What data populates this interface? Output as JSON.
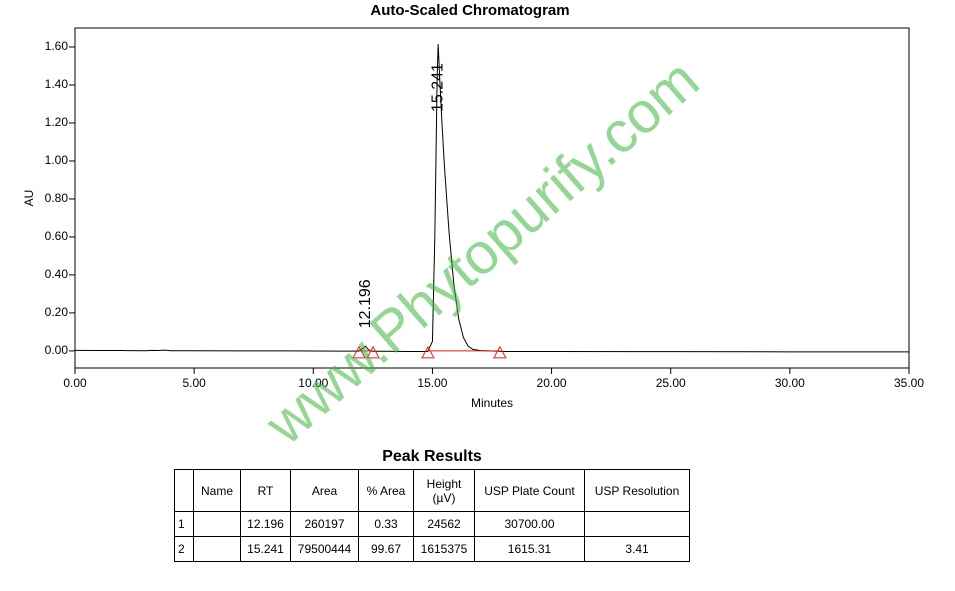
{
  "chart_data": {
    "type": "line",
    "title": "Auto-Scaled Chromatogram",
    "x_label": "Minutes",
    "y_label": "AU",
    "xlim": [
      0,
      35
    ],
    "ylim": [
      -0.09,
      1.7
    ],
    "xticks": [
      {
        "value": 0,
        "label": "0.00"
      },
      {
        "value": 5,
        "label": "5.00"
      },
      {
        "value": 10,
        "label": "10.00"
      },
      {
        "value": 15,
        "label": "15.00"
      },
      {
        "value": 20,
        "label": "20.00"
      },
      {
        "value": 25,
        "label": "25.00"
      },
      {
        "value": 30,
        "label": "30.00"
      },
      {
        "value": 35,
        "label": "35.00"
      }
    ],
    "yticks": [
      {
        "value": 0,
        "label": "0.00"
      },
      {
        "value": 0.2,
        "label": "0.20"
      },
      {
        "value": 0.4,
        "label": "0.40"
      },
      {
        "value": 0.6,
        "label": "0.60"
      },
      {
        "value": 0.8,
        "label": "0.80"
      },
      {
        "value": 1.0,
        "label": "1.00"
      },
      {
        "value": 1.2,
        "label": "1.20"
      },
      {
        "value": 1.4,
        "label": "1.40"
      },
      {
        "value": 1.6,
        "label": "1.60"
      }
    ],
    "x": [
      0,
      1,
      2,
      3,
      3.2,
      3.5,
      3.8,
      4,
      5,
      7,
      9,
      11,
      11.9,
      12.1,
      12.196,
      12.3,
      12.45,
      13,
      14,
      14.8,
      15.0,
      15.1,
      15.2,
      15.241,
      15.3,
      15.4,
      15.5,
      15.7,
      15.9,
      16.1,
      16.3,
      16.5,
      16.7,
      17,
      18,
      20,
      25,
      30,
      35
    ],
    "series": [
      {
        "color": "#000000",
        "values": [
          0.003,
          0.002,
          0.002,
          0.001,
          0.003,
          0.002,
          0.004,
          0.001,
          0.001,
          0,
          0,
          -0.001,
          -0.001,
          0.015,
          0.0246,
          0.008,
          -0.002,
          -0.002,
          -0.003,
          -0.003,
          0.05,
          0.6,
          1.45,
          1.615,
          1.45,
          1.2,
          0.98,
          0.62,
          0.35,
          0.17,
          0.07,
          0.025,
          0.008,
          0.002,
          -0.003,
          -0.003,
          -0.004,
          -0.005,
          -0.005
        ]
      }
    ],
    "annotations": [
      {
        "x": 12.196,
        "y": 0.0246
      },
      {
        "x": 15.241,
        "y": 1.615
      }
    ],
    "integration_marks": [
      11.92,
      12.51,
      14.81,
      17.83
    ],
    "marks_color": "#e0201a"
  },
  "watermark": "www.Phytopurify.com",
  "table": {
    "title": "Peak Results",
    "columns": [
      null,
      "Name",
      "RT",
      "Area",
      "% Area",
      "Height (µV)",
      "USP Plate Count",
      "USP Resolution"
    ],
    "rows": [
      [
        "1",
        null,
        "12.196",
        "260197",
        "0.33",
        "24562",
        "30700.00",
        null
      ],
      [
        "2",
        null,
        "15.241",
        "79500444",
        "99.67",
        "1615375",
        "1615.31",
        "3.41"
      ]
    ]
  }
}
